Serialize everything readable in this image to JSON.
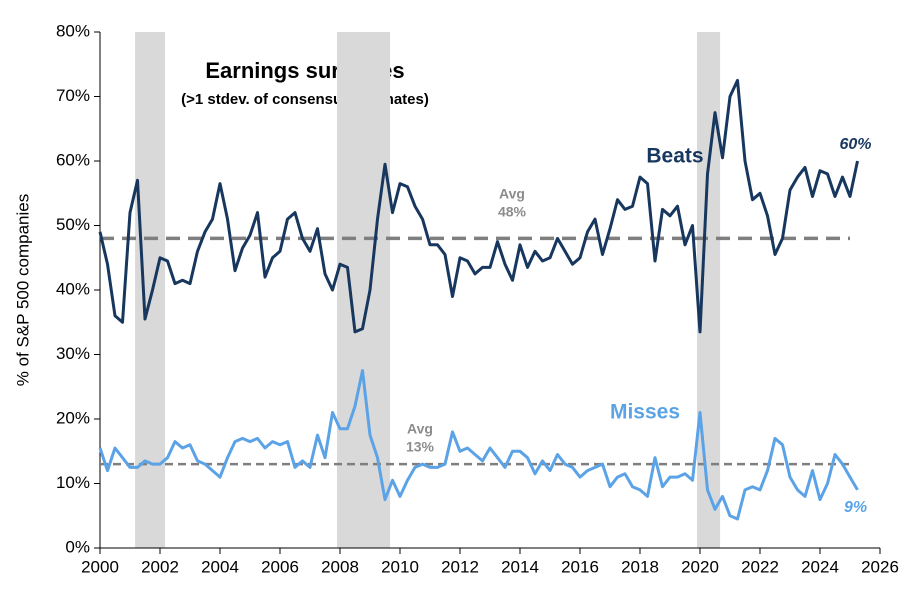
{
  "chart_data": {
    "type": "line",
    "title": "Earnings surprises",
    "subtitle": "(>1 stdev. of consensus estimates)",
    "y_label": "% of S&P 500 companies",
    "x": [
      2000,
      2000.25,
      2000.5,
      2000.75,
      2001,
      2001.25,
      2001.5,
      2001.75,
      2002,
      2002.25,
      2002.5,
      2002.75,
      2003,
      2003.25,
      2003.5,
      2003.75,
      2004,
      2004.25,
      2004.5,
      2004.75,
      2005,
      2005.25,
      2005.5,
      2005.75,
      2006,
      2006.25,
      2006.5,
      2006.75,
      2007,
      2007.25,
      2007.5,
      2007.75,
      2008,
      2008.25,
      2008.5,
      2008.75,
      2009,
      2009.25,
      2009.5,
      2009.75,
      2010,
      2010.25,
      2010.5,
      2010.75,
      2011,
      2011.25,
      2011.5,
      2011.75,
      2012,
      2012.25,
      2012.5,
      2012.75,
      2013,
      2013.25,
      2013.5,
      2013.75,
      2014,
      2014.25,
      2014.5,
      2014.75,
      2015,
      2015.25,
      2015.5,
      2015.75,
      2016,
      2016.25,
      2016.5,
      2016.75,
      2017,
      2017.25,
      2017.5,
      2017.75,
      2018,
      2018.25,
      2018.5,
      2018.75,
      2019,
      2019.25,
      2019.5,
      2019.75,
      2020,
      2020.25,
      2020.5,
      2020.75,
      2021,
      2021.25,
      2021.5,
      2021.75,
      2022,
      2022.25,
      2022.5,
      2022.75,
      2023,
      2023.25,
      2023.5,
      2023.75,
      2024,
      2024.25,
      2024.5,
      2024.75,
      2025,
      2025.25
    ],
    "series": [
      {
        "name": "Beats",
        "color": "#17375e",
        "values": [
          49,
          44,
          36,
          35,
          52,
          57,
          35.5,
          40,
          45,
          44.5,
          41,
          41.5,
          41,
          46,
          49,
          51,
          56.5,
          51,
          43,
          46.5,
          48.5,
          52,
          42,
          45,
          46,
          51,
          52,
          48,
          46,
          49.5,
          42.5,
          40,
          44,
          43.5,
          33.5,
          34,
          40,
          51,
          59.5,
          52,
          56.5,
          56,
          53,
          51,
          47,
          47,
          45.5,
          39,
          45,
          44.5,
          42.5,
          43.5,
          43.5,
          47.5,
          44,
          41.5,
          47,
          43.5,
          46,
          44.5,
          45,
          48,
          46,
          44,
          45,
          49,
          51,
          45.5,
          49.5,
          54,
          52.5,
          53,
          57.5,
          56.5,
          44.5,
          52.5,
          51.5,
          53,
          47,
          50,
          33.5,
          58,
          67.5,
          60.5,
          70,
          72.5,
          60,
          54,
          55,
          51.5,
          45.5,
          48,
          55.5,
          57.5,
          59,
          54.5,
          58.5,
          58,
          54.5,
          57.5,
          54.5,
          60
        ],
        "end_label": "60%",
        "avg": 48,
        "avg_text": "Avg",
        "avg_label": "48%"
      },
      {
        "name": "Misses",
        "color": "#5ba3e6",
        "values": [
          15.5,
          12,
          15.5,
          14,
          12.5,
          12.5,
          13.5,
          13,
          13,
          14,
          16.5,
          15.5,
          16,
          13.5,
          13,
          12,
          11,
          14,
          16.5,
          17,
          16.5,
          17,
          15.5,
          16.5,
          16,
          16.5,
          12.5,
          13.5,
          12.5,
          17.5,
          14,
          21,
          18.5,
          18.5,
          22,
          27.5,
          17.5,
          14,
          7.5,
          10.5,
          8,
          10.5,
          12.5,
          13,
          12.5,
          12.5,
          13,
          18,
          15,
          15.5,
          14.5,
          13.5,
          15.5,
          14,
          12.5,
          15,
          15,
          14,
          11.5,
          13.5,
          12,
          14.5,
          13,
          12.5,
          11,
          12,
          12.5,
          13,
          9.5,
          11,
          11.5,
          9.5,
          9,
          8,
          14,
          9.5,
          11,
          11,
          11.5,
          10.5,
          21,
          9,
          6,
          8,
          5,
          4.5,
          9,
          9.5,
          9,
          12,
          17,
          16,
          11,
          9,
          8,
          12,
          7.5,
          10,
          14.5,
          13,
          11,
          9
        ],
        "end_label": "9%",
        "avg": 13,
        "avg_text": "Avg",
        "avg_label": "13%"
      }
    ],
    "recessions": [
      [
        2001.17,
        2002.17
      ],
      [
        2007.9,
        2009.67
      ],
      [
        2019.9,
        2020.67
      ]
    ],
    "xlim": [
      2000,
      2026
    ],
    "xticks": [
      2000,
      2002,
      2004,
      2006,
      2008,
      2010,
      2012,
      2014,
      2016,
      2018,
      2020,
      2022,
      2024,
      2026
    ],
    "ylim": [
      0,
      80
    ],
    "yticks": [
      {
        "value": 0,
        "label": "0%"
      },
      {
        "value": 10,
        "label": "10%"
      },
      {
        "value": 20,
        "label": "20%"
      },
      {
        "value": 30,
        "label": "30%"
      },
      {
        "value": 40,
        "label": "40%"
      },
      {
        "value": 50,
        "label": "50%"
      },
      {
        "value": 60,
        "label": "60%"
      },
      {
        "value": 70,
        "label": "70%"
      },
      {
        "value": 80,
        "label": "80%"
      }
    ]
  }
}
